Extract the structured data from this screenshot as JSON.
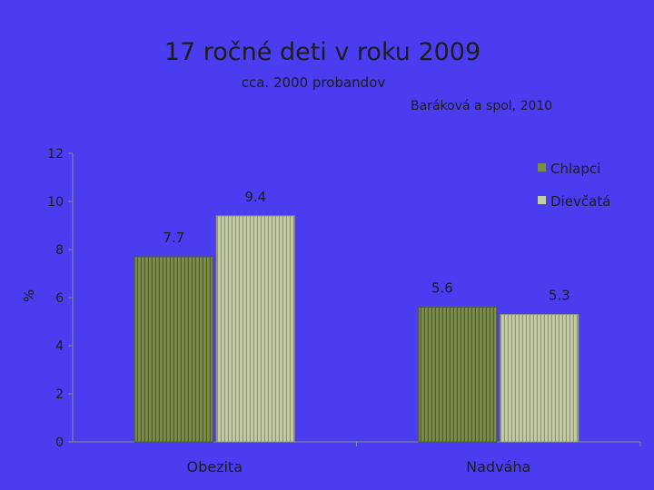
{
  "title": "17 ročné deti v roku 2009",
  "subtitle": "cca. 2000 probandov",
  "source": "Baráková a spol, 2010",
  "colors": {
    "background": "#4a3df0",
    "chlapci": "#7a8c4e",
    "dievcata": "#c4cca8",
    "text": "#1c1c1c"
  },
  "chart_data": {
    "type": "bar",
    "categories": [
      "Obezita",
      "Nadváha"
    ],
    "series": [
      {
        "name": "Chlapci",
        "values": [
          7.7,
          5.6
        ]
      },
      {
        "name": "Dievčatá",
        "values": [
          9.4,
          5.3
        ]
      }
    ],
    "data_labels": [
      [
        "7.7",
        "5.6"
      ],
      [
        "9.4",
        "5.3"
      ]
    ],
    "ylabel": "%",
    "xlabel": "",
    "ylim": [
      0,
      12
    ],
    "yticks": [
      0,
      2,
      4,
      6,
      8,
      10,
      12
    ],
    "grid": false,
    "legend_position": "top-right"
  }
}
